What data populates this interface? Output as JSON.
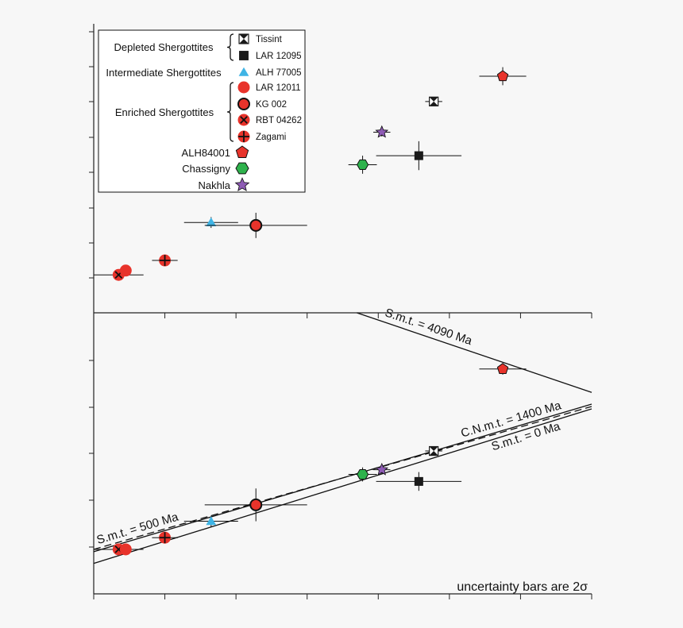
{
  "legend": {
    "groups": [
      {
        "label": "Depleted Shergottites",
        "entries": [
          {
            "label": "Tissint",
            "symbol": "tissint"
          },
          {
            "label": "LAR 12095",
            "symbol": "square"
          }
        ]
      },
      {
        "label": "Intermediate Shergottites",
        "entries": [
          {
            "label": "ALH 77005",
            "symbol": "triangle"
          }
        ]
      },
      {
        "label": "Enriched Shergottites",
        "entries": [
          {
            "label": "LAR 12011",
            "symbol": "circle"
          },
          {
            "label": "KG 002",
            "symbol": "circle-ring"
          },
          {
            "label": "RBT 04262",
            "symbol": "circle-x"
          },
          {
            "label": "Zagami",
            "symbol": "circle-plus"
          }
        ]
      }
    ],
    "singles": [
      {
        "label": "ALH84001",
        "symbol": "pentagon"
      },
      {
        "label": "Chassigny",
        "symbol": "hexagon"
      },
      {
        "label": "Nakhla",
        "symbol": "star"
      }
    ]
  },
  "colors": {
    "red": "#e8332b",
    "blue": "#3fb4e5",
    "green": "#2eb24c",
    "purple": "#8e5bb5",
    "dark": "#1a1a1a",
    "axis": "#222222",
    "background": "#f7f7f7"
  },
  "annotation": "uncertainty bars are 2σ",
  "chart_data": [
    {
      "type": "scatter",
      "panel": "top",
      "xlim": [
        0,
        7
      ],
      "ylim": [
        0,
        8
      ],
      "points": [
        {
          "name": "RBT 04262",
          "symbol": "circle-x",
          "color": "red",
          "x": 0.35,
          "y": 1.05,
          "xerr": 0.35,
          "yerr": 0.1
        },
        {
          "name": "LAR 12011",
          "symbol": "circle",
          "color": "red",
          "x": 0.45,
          "y": 1.17,
          "xerr": 0.0,
          "yerr": 0.0
        },
        {
          "name": "Zagami",
          "symbol": "circle-plus",
          "color": "red",
          "x": 1.0,
          "y": 1.45,
          "xerr": 0.18,
          "yerr": 0.12
        },
        {
          "name": "ALH 77005",
          "symbol": "triangle",
          "color": "blue",
          "x": 1.65,
          "y": 2.5,
          "xerr": 0.38,
          "yerr": 0.15
        },
        {
          "name": "KG 002",
          "symbol": "circle-ring",
          "color": "red",
          "x": 2.28,
          "y": 2.42,
          "xerr": 0.72,
          "yerr": 0.35
        },
        {
          "name": "Chassigny",
          "symbol": "hexagon",
          "color": "green",
          "x": 3.78,
          "y": 4.1,
          "xerr": 0.2,
          "yerr": 0.25
        },
        {
          "name": "Nakhla",
          "symbol": "star",
          "color": "purple",
          "x": 4.05,
          "y": 5.0,
          "xerr": 0.12,
          "yerr": 0.12
        },
        {
          "name": "LAR 12095",
          "symbol": "square",
          "color": "dark",
          "x": 4.57,
          "y": 4.35,
          "xerr": 0.6,
          "yerr": 0.4
        },
        {
          "name": "Tissint",
          "symbol": "tissint",
          "color": "dark",
          "x": 4.78,
          "y": 5.85,
          "xerr": 0.12,
          "yerr": 0.1
        },
        {
          "name": "ALH84001",
          "symbol": "pentagon",
          "color": "red",
          "x": 5.75,
          "y": 6.55,
          "xerr": 0.33,
          "yerr": 0.25
        }
      ]
    },
    {
      "type": "scatter",
      "panel": "bottom",
      "xlim": [
        0,
        7
      ],
      "ylim": [
        0,
        6
      ],
      "points": [
        {
          "name": "RBT 04262",
          "symbol": "circle-x",
          "color": "red",
          "x": 0.35,
          "y": 0.95,
          "xerr": 0.35,
          "yerr": 0.1
        },
        {
          "name": "LAR 12011",
          "symbol": "circle",
          "color": "red",
          "x": 0.45,
          "y": 0.95,
          "xerr": 0.0,
          "yerr": 0.0
        },
        {
          "name": "Zagami",
          "symbol": "circle-plus",
          "color": "red",
          "x": 1.0,
          "y": 1.2,
          "xerr": 0.18,
          "yerr": 0.12
        },
        {
          "name": "ALH 77005",
          "symbol": "triangle",
          "color": "blue",
          "x": 1.65,
          "y": 1.55,
          "xerr": 0.38,
          "yerr": 0.12
        },
        {
          "name": "KG 002",
          "symbol": "circle-ring",
          "color": "red",
          "x": 2.28,
          "y": 1.9,
          "xerr": 0.72,
          "yerr": 0.35
        },
        {
          "name": "Chassigny",
          "symbol": "hexagon",
          "color": "green",
          "x": 3.78,
          "y": 2.55,
          "xerr": 0.2,
          "yerr": 0.15
        },
        {
          "name": "Nakhla",
          "symbol": "star",
          "color": "purple",
          "x": 4.05,
          "y": 2.65,
          "xerr": 0.12,
          "yerr": 0.1
        },
        {
          "name": "LAR 12095",
          "symbol": "square",
          "color": "dark",
          "x": 4.57,
          "y": 2.4,
          "xerr": 0.6,
          "yerr": 0.2
        },
        {
          "name": "Tissint",
          "symbol": "tissint",
          "color": "dark",
          "x": 4.78,
          "y": 3.05,
          "xerr": 0.12,
          "yerr": 0.08
        },
        {
          "name": "ALH84001",
          "symbol": "pentagon",
          "color": "red",
          "x": 5.75,
          "y": 4.8,
          "xerr": 0.33,
          "yerr": 0.12
        }
      ],
      "reference_lines": [
        {
          "label": "S.m.t. = 4090 Ma",
          "x1": 3.7,
          "y1": 6.0,
          "x2": 7.0,
          "y2": 4.3,
          "style": "solid"
        },
        {
          "label": "C.N.m.t. = 1400 Ma",
          "x1": 0.0,
          "y1": 0.95,
          "x2": 7.0,
          "y2": 4.0,
          "style": "dashed"
        },
        {
          "label": "S.m.t. = 0 Ma",
          "x1": 0.0,
          "y1": 0.65,
          "x2": 7.0,
          "y2": 3.95,
          "style": "solid"
        },
        {
          "label": "S.m.t. = 500 Ma",
          "x1": 0.0,
          "y1": 0.9,
          "x2": 7.0,
          "y2": 4.05,
          "style": "solid"
        }
      ]
    }
  ]
}
